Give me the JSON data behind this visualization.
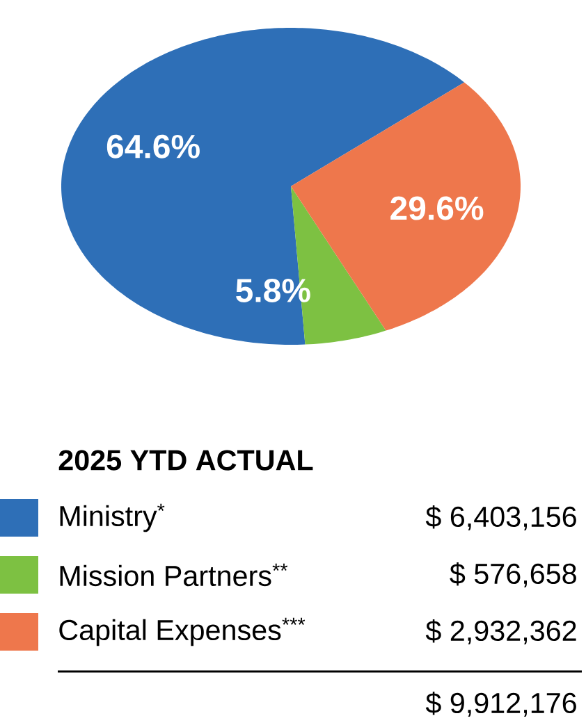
{
  "chart_data": {
    "type": "pie",
    "legend_title": "2025 YTD ACTUAL",
    "categories": [
      "Ministry$^{*}$",
      "Mission Partners$^{**}$",
      "Capital Expenses$^{***}$"
    ],
    "values": [
      64.6,
      5.8,
      29.6
    ],
    "value_labels": [
      "64.6%",
      "5.8%",
      "29.6%"
    ],
    "colors": [
      "#2e6fb7",
      "#7dc142",
      "#ee774c"
    ],
    "legend": "bottom",
    "annotations": [
      "$ 6,403,156",
      "$ 576,658",
      "$ 2,932,362",
      "$ 9,912,176"
    ]
  }
}
